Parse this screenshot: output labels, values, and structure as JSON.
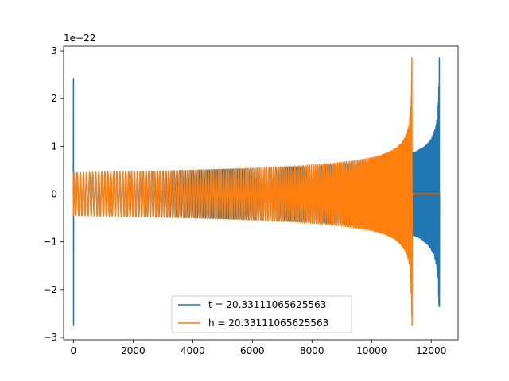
{
  "chart_data": {
    "type": "line",
    "title": "",
    "xlabel": "",
    "ylabel": "",
    "y_offset_label": "1e−22",
    "xlim": [
      -330,
      12900
    ],
    "ylim": [
      -3.05,
      3.1
    ],
    "x_ticks": [
      0,
      2000,
      4000,
      6000,
      8000,
      10000,
      12000
    ],
    "x_tick_labels": [
      "0",
      "2000",
      "4000",
      "6000",
      "8000",
      "10000",
      "12000"
    ],
    "y_ticks": [
      -3,
      -2,
      -1,
      0,
      1,
      2,
      3
    ],
    "y_tick_labels": [
      "−3",
      "−2",
      "−1",
      "0",
      "1",
      "2",
      "3"
    ],
    "grid": false,
    "legend_position": "lower center",
    "series": [
      {
        "name": "t = 20.33111065625563",
        "color": "#1f77b4",
        "initial_spike": {
          "x": 0,
          "max": 2.42,
          "min": -2.75
        },
        "chirp": {
          "x_start": 0,
          "x_merger": 12270,
          "x_end": 12270,
          "base_amplitude": 0.45,
          "peak_max": 2.85,
          "peak_min": -2.35
        },
        "post_merger_value": 0
      },
      {
        "name": "h = 20.33111065625563",
        "color": "#ff7f0e",
        "initial_spike": {
          "x": 0,
          "max": 0.45,
          "min": -0.45
        },
        "chirp": {
          "x_start": 0,
          "x_merger": 11350,
          "x_end": 11370,
          "base_amplitude": 0.45,
          "peak_max": 2.85,
          "peak_min": -2.75
        },
        "post_merger_value": 0,
        "post_merger_x_end": 12270
      }
    ]
  }
}
